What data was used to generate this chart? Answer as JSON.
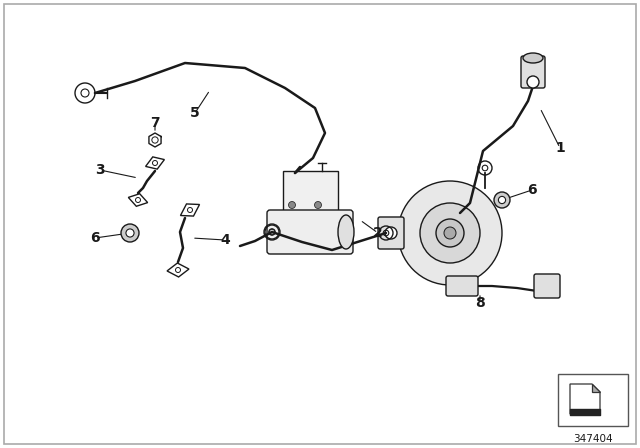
{
  "bg_color": "#ffffff",
  "border_color": "#888888",
  "line_color": "#1a1a1a",
  "diagram_number": "347404",
  "cable_lw": 1.8,
  "thin_lw": 1.0,
  "label_fontsize": 10
}
